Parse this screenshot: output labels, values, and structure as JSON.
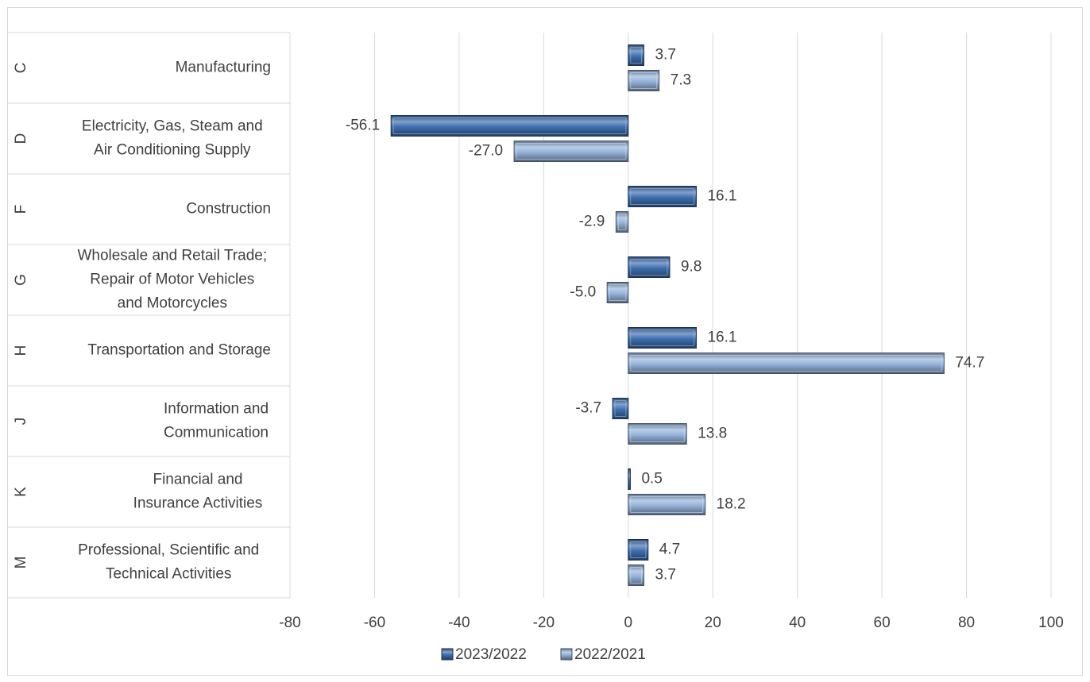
{
  "chart_data": {
    "type": "bar",
    "orientation": "horizontal",
    "title": "",
    "xlabel": "",
    "ylabel": "",
    "xlim": [
      -80,
      100
    ],
    "xticks": [
      "-80",
      "-60",
      "-40",
      "-20",
      "0",
      "20",
      "40",
      "60",
      "80",
      "100"
    ],
    "grid": true,
    "legend_position": "bottom",
    "categories": [
      {
        "code": "C",
        "label_lines": [
          "Manufacturing"
        ]
      },
      {
        "code": "D",
        "label_lines": [
          "Electricity, Gas, Steam and",
          "Air Conditioning Supply"
        ]
      },
      {
        "code": "F",
        "label_lines": [
          "Construction"
        ]
      },
      {
        "code": "G",
        "label_lines": [
          "Wholesale and Retail Trade;",
          "Repair of Motor Vehicles",
          "and Motorcycles"
        ]
      },
      {
        "code": "H",
        "label_lines": [
          "Transportation and Storage"
        ]
      },
      {
        "code": "J",
        "label_lines": [
          "Information and",
          "Communication"
        ]
      },
      {
        "code": "K",
        "label_lines": [
          "Financial and",
          "Insurance Activities"
        ]
      },
      {
        "code": "M",
        "label_lines": [
          "Professional, Scientific and",
          "Technical Activities"
        ]
      }
    ],
    "series": [
      {
        "name": "2023/2022",
        "color": "#3e6fb0",
        "values": [
          3.7,
          -56.1,
          16.1,
          9.8,
          16.1,
          -3.7,
          0.5,
          4.7
        ],
        "labels": [
          "3.7",
          "-56.1",
          "16.1",
          "9.8",
          "16.1",
          "-3.7",
          "0.5",
          "4.7"
        ]
      },
      {
        "name": "2022/2021",
        "color": "#95b3da",
        "values": [
          7.3,
          -27.0,
          -2.9,
          -5.0,
          74.7,
          13.8,
          18.2,
          3.7
        ],
        "labels": [
          "7.3",
          "-27.0",
          "-2.9",
          "-5.0",
          "74.7",
          "13.8",
          "18.2",
          "3.7"
        ]
      }
    ]
  }
}
